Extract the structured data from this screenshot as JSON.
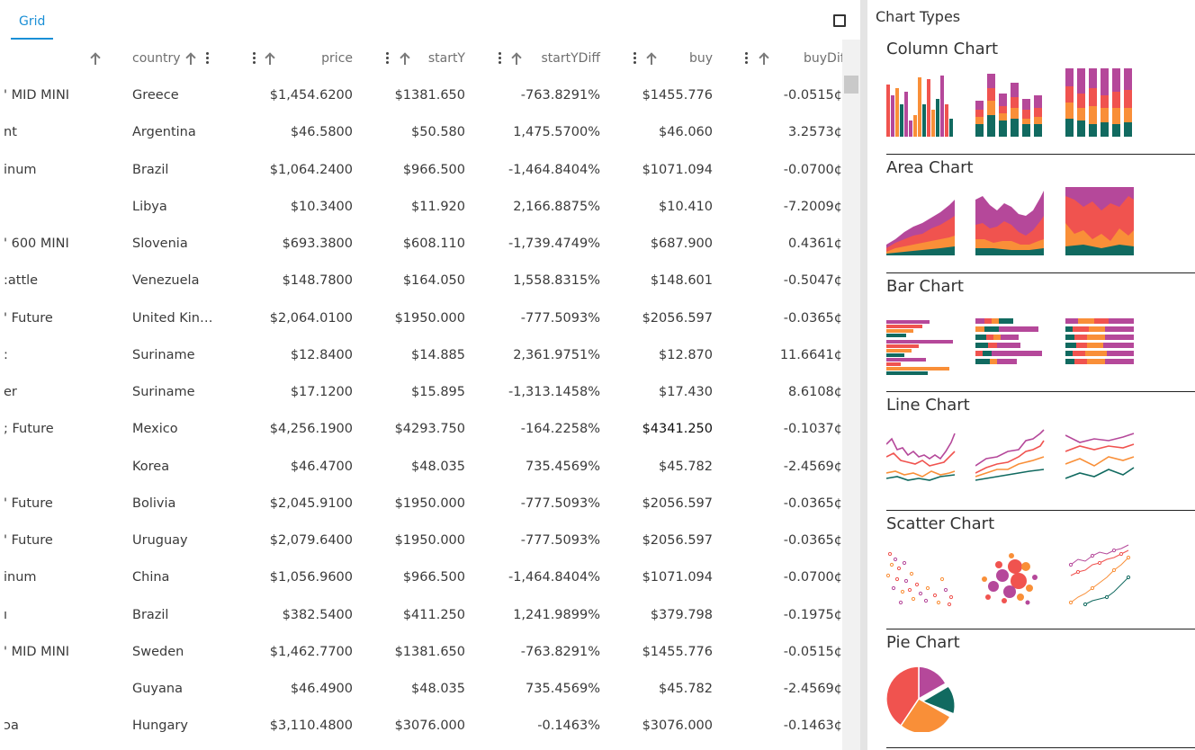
{
  "tabs": {
    "grid": "Grid"
  },
  "columns": {
    "country": "country",
    "price": "price",
    "startY": "startY",
    "startYDiff": "startYDiff",
    "buy": "buy",
    "buyDiff": "buyDif"
  },
  "rows": [
    {
      "name": "' MID MINI",
      "country": "Greece",
      "price": "$1,454.6200",
      "startY": "$1381.650",
      "startYDiff": "-763.8291%",
      "buy": "$1455.776",
      "buyDiff": "-0.0515¢"
    },
    {
      "name": "nt",
      "country": "Argentina",
      "price": "$46.5800",
      "startY": "$50.580",
      "startYDiff": "1,475.5700%",
      "buy": "$46.060",
      "buyDiff": "3.2573¢"
    },
    {
      "name": "inum",
      "country": "Brazil",
      "price": "$1,064.2400",
      "startY": "$966.500",
      "startYDiff": "-1,464.8404%",
      "buy": "$1071.094",
      "buyDiff": "-0.0700¢"
    },
    {
      "name": "",
      "country": "Libya",
      "price": "$10.3400",
      "startY": "$11.920",
      "startYDiff": "2,166.8875%",
      "buy": "$10.410",
      "buyDiff": "-7.2009¢"
    },
    {
      "name": "' 600 MINI",
      "country": "Slovenia",
      "price": "$693.3800",
      "startY": "$608.110",
      "startYDiff": "-1,739.4749%",
      "buy": "$687.900",
      "buyDiff": "0.4361¢"
    },
    {
      "name": ":attle",
      "country": "Venezuela",
      "price": "$148.7800",
      "startY": "$164.050",
      "startYDiff": "1,558.8315%",
      "buy": "$148.601",
      "buyDiff": "-0.5047¢"
    },
    {
      "name": "' Future",
      "country": "United King...",
      "price": "$2,064.0100",
      "startY": "$1950.000",
      "startYDiff": "-777.5093%",
      "buy": "$2056.597",
      "buyDiff": "-0.0365¢"
    },
    {
      "name": ":",
      "country": "Suriname",
      "price": "$12.8400",
      "startY": "$14.885",
      "startYDiff": "2,361.9751%",
      "buy": "$12.870",
      "buyDiff": "11.6641¢"
    },
    {
      "name": "er",
      "country": "Suriname",
      "price": "$17.1200",
      "startY": "$15.895",
      "startYDiff": "-1,313.1458%",
      "buy": "$17.430",
      "buyDiff": "8.6108¢"
    },
    {
      "name": "; Future",
      "country": "Mexico",
      "price": "$4,256.1900",
      "startY": "$4293.750",
      "startYDiff": "-164.2258%",
      "buy": "$4341.250",
      "buyDiff": "-0.1037¢"
    },
    {
      "name": "",
      "country": "Korea",
      "price": "$46.4700",
      "startY": "$48.035",
      "startYDiff": "735.4569%",
      "buy": "$45.782",
      "buyDiff": "-2.4569¢"
    },
    {
      "name": "' Future",
      "country": "Bolivia",
      "price": "$2,045.9100",
      "startY": "$1950.000",
      "startYDiff": "-777.5093%",
      "buy": "$2056.597",
      "buyDiff": "-0.0365¢"
    },
    {
      "name": "' Future",
      "country": "Uruguay",
      "price": "$2,079.6400",
      "startY": "$1950.000",
      "startYDiff": "-777.5093%",
      "buy": "$2056.597",
      "buyDiff": "-0.0365¢"
    },
    {
      "name": "inum",
      "country": "China",
      "price": "$1,056.9600",
      "startY": "$966.500",
      "startYDiff": "-1,464.8404%",
      "buy": "$1071.094",
      "buyDiff": "-0.0700¢"
    },
    {
      "name": "ı",
      "country": "Brazil",
      "price": "$382.5400",
      "startY": "$411.250",
      "startYDiff": "1,241.9899%",
      "buy": "$379.798",
      "buyDiff": "-0.1975¢"
    },
    {
      "name": "' MID MINI",
      "country": "Sweden",
      "price": "$1,462.7700",
      "startY": "$1381.650",
      "startYDiff": "-763.8291%",
      "buy": "$1455.776",
      "buyDiff": "-0.0515¢"
    },
    {
      "name": "",
      "country": "Guyana",
      "price": "$46.4900",
      "startY": "$48.035",
      "startYDiff": "735.4569%",
      "buy": "$45.782",
      "buyDiff": "-2.4569¢"
    },
    {
      "name": "ɔa",
      "country": "Hungary",
      "price": "$3,110.4800",
      "startY": "$3076.000",
      "startYDiff": "-0.1463%",
      "buy": "$3076.000",
      "buyDiff": "-0.1463¢"
    }
  ],
  "highlighted_cell": {
    "row": 9,
    "column": "buy"
  },
  "chart_panel": {
    "title": "Chart Types",
    "sections": [
      {
        "key": "column",
        "title": "Column Chart",
        "variants": [
          "column-grouped",
          "column-stacked",
          "column-normalized"
        ]
      },
      {
        "key": "area",
        "title": "Area Chart",
        "variants": [
          "area",
          "area-stacked",
          "area-normalized"
        ]
      },
      {
        "key": "bar",
        "title": "Bar Chart",
        "variants": [
          "bar-grouped",
          "bar-stacked",
          "bar-normalized"
        ]
      },
      {
        "key": "line",
        "title": "Line Chart",
        "variants": [
          "line-1",
          "line-2",
          "line-3"
        ]
      },
      {
        "key": "scatter",
        "title": "Scatter Chart",
        "variants": [
          "scatter",
          "bubble",
          "scatter-lines"
        ]
      },
      {
        "key": "pie",
        "title": "Pie Chart",
        "variants": [
          "pie"
        ]
      }
    ]
  },
  "colors": {
    "accent": "#1a8fd6",
    "series": [
      "#b5489a",
      "#f0534f",
      "#f98f38",
      "#116a60"
    ]
  }
}
